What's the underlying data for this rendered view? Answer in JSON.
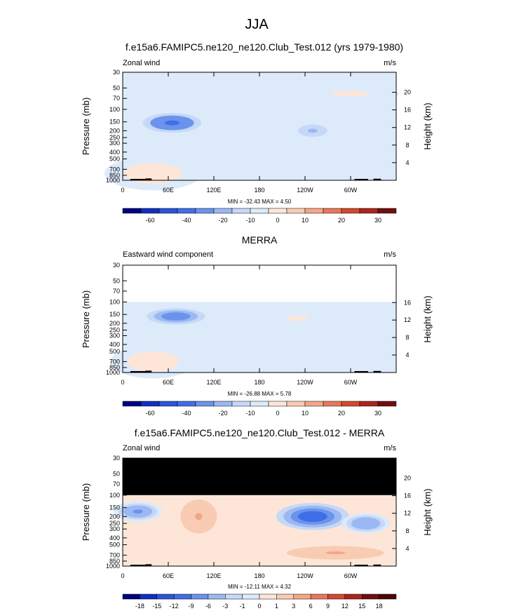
{
  "page": {
    "title": "JJA"
  },
  "panels": [
    {
      "id": "model",
      "title": "f.e15a6.FAMIPC5.ne120_ne120.Club_Test.012 (yrs 1979-1980)",
      "variable": "Zonal wind",
      "units": "m/s",
      "minmax": "MIN = -32.43  MAX =   4.50",
      "ylabel_left": "Pressure (mb)",
      "ylabel_right": "Height (km)",
      "pressure_ticks": [
        "30",
        "50",
        "70",
        "100",
        "150",
        "200",
        "250",
        "300",
        "400",
        "500",
        "700",
        "850",
        "1000"
      ],
      "height_ticks": [
        "20",
        "16",
        "12",
        "8",
        "4"
      ],
      "x_ticks": [
        "0",
        "60E",
        "120E",
        "180",
        "120W",
        "60W"
      ],
      "colorbar": [
        "-60",
        "-40",
        "-20",
        "-10",
        "0",
        "10",
        "20",
        "30"
      ]
    },
    {
      "id": "obs",
      "title": "MERRA",
      "variable": "Eastward wind component",
      "units": "m/s",
      "minmax": "MIN = -26.88  MAX =   5.78",
      "ylabel_left": "Pressure (mb)",
      "ylabel_right": "Height (km)",
      "pressure_ticks": [
        "30",
        "50",
        "70",
        "100",
        "150",
        "200",
        "250",
        "300",
        "400",
        "500",
        "700",
        "850",
        "1000"
      ],
      "height_ticks": [
        "16",
        "12",
        "8",
        "4"
      ],
      "x_ticks": [
        "0",
        "60E",
        "120E",
        "180",
        "120W",
        "60W"
      ],
      "colorbar": [
        "-60",
        "-40",
        "-20",
        "-10",
        "0",
        "10",
        "20",
        "30"
      ]
    },
    {
      "id": "diff",
      "title": "f.e15a6.FAMIPC5.ne120_ne120.Club_Test.012 - MERRA",
      "variable": "Zonal wind",
      "units": "m/s",
      "minmax": "MIN = -12.11  MAX =   4.32",
      "ylabel_left": "Pressure (mb)",
      "ylabel_right": "Height (km)",
      "pressure_ticks": [
        "30",
        "50",
        "70",
        "100",
        "150",
        "200",
        "250",
        "300",
        "400",
        "500",
        "700",
        "850",
        "1000"
      ],
      "height_ticks": [
        "20",
        "16",
        "12",
        "8",
        "4"
      ],
      "x_ticks": [
        "0",
        "60E",
        "120E",
        "180",
        "120W",
        "60W"
      ],
      "colorbar": [
        "-18",
        "-15",
        "-12",
        "-9",
        "-6",
        "-3",
        "-1",
        "0",
        "1",
        "3",
        "6",
        "9",
        "12",
        "15",
        "18"
      ]
    }
  ],
  "colors": {
    "absolute_scale": [
      "#000080",
      "#0f2fbf",
      "#2a55d8",
      "#3f6fe6",
      "#6b93ec",
      "#9bb8f2",
      "#c5d8f7",
      "#ddeafa",
      "#fde6d8",
      "#f9cbb3",
      "#f3a687",
      "#e8775a",
      "#d2492f",
      "#a8261a",
      "#700f10"
    ],
    "diff_scale": [
      "#000080",
      "#0f2fbf",
      "#2a55d8",
      "#3f6fe6",
      "#6b93ec",
      "#9bb8f2",
      "#c5d8f7",
      "#ddeafa",
      "#fde6d8",
      "#f9cbb3",
      "#f3a687",
      "#e8775a",
      "#d2492f",
      "#a8261a",
      "#700f10",
      "#4a0808"
    ]
  },
  "chart_data": [
    {
      "type": "heatmap",
      "title": "f.e15a6.FAMIPC5.ne120_ne120.Club_Test.012 (yrs 1979-1980)",
      "ylabel": "Pressure (mb)",
      "y2label": "Height (km)",
      "units": "m/s",
      "x_range_deg_east": [
        0,
        360
      ],
      "y_range_mb": [
        1000,
        30
      ],
      "min": -32.43,
      "max": 4.5,
      "blobs": [
        {
          "lon": 65,
          "p": 155,
          "value": -32,
          "lon_width": 30,
          "p_log_width": 0.18
        },
        {
          "lon": 250,
          "p": 200,
          "value": -18,
          "lon_width": 20,
          "p_log_width": 0.15
        },
        {
          "lon": 40,
          "p": 800,
          "value": 3,
          "lon_width": 40,
          "p_log_width": 0.25
        },
        {
          "lon": 300,
          "p": 60,
          "value": 1,
          "lon_width": 40,
          "p_log_width": 0.1
        }
      ]
    },
    {
      "type": "heatmap",
      "title": "MERRA",
      "ylabel": "Pressure (mb)",
      "y2label": "Height (km)",
      "units": "m/s",
      "x_range_deg_east": [
        0,
        360
      ],
      "y_range_mb": [
        1000,
        100
      ],
      "min": -26.88,
      "max": 5.78,
      "blobs": [
        {
          "lon": 70,
          "p": 160,
          "value": -26,
          "lon_width": 30,
          "p_log_width": 0.15
        },
        {
          "lon": 40,
          "p": 700,
          "value": 4,
          "lon_width": 35,
          "p_log_width": 0.25
        },
        {
          "lon": 230,
          "p": 170,
          "value": 1,
          "lon_width": 20,
          "p_log_width": 0.1
        }
      ]
    },
    {
      "type": "heatmap",
      "title": "f.e15a6.FAMIPC5.ne120_ne120.Club_Test.012 - MERRA",
      "ylabel": "Pressure (mb)",
      "y2label": "Height (km)",
      "units": "m/s",
      "x_range_deg_east": [
        0,
        360
      ],
      "y_range_mb": [
        1000,
        100
      ],
      "min": -12.11,
      "max": 4.32,
      "blobs": [
        {
          "lon": 250,
          "p": 200,
          "value": -12,
          "lon_width": 30,
          "p_log_width": 0.2
        },
        {
          "lon": 20,
          "p": 170,
          "value": -7,
          "lon_width": 20,
          "p_log_width": 0.15
        },
        {
          "lon": 100,
          "p": 200,
          "value": 3,
          "lon_width": 15,
          "p_log_width": 0.25
        },
        {
          "lon": 280,
          "p": 650,
          "value": 3,
          "lon_width": 40,
          "p_log_width": 0.1
        },
        {
          "lon": 320,
          "p": 250,
          "value": -6,
          "lon_width": 20,
          "p_log_width": 0.15
        }
      ]
    }
  ]
}
